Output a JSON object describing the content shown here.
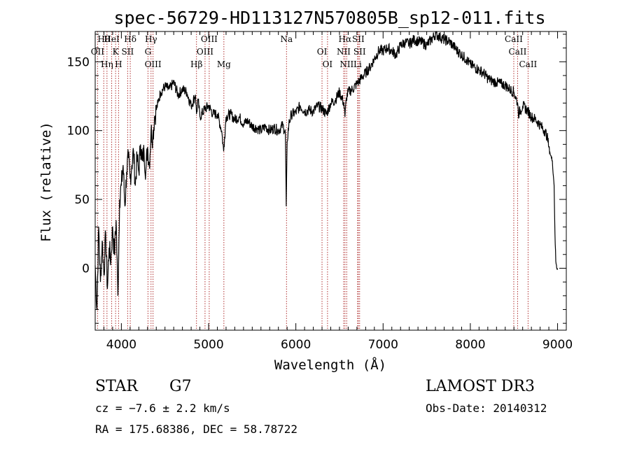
{
  "title": "spec-56729-HD113127N570805B_sp12-011.fits",
  "info": {
    "object_class": "STAR",
    "subclass": "G7",
    "survey": "LAMOST DR3",
    "cz": "cz = −7.6 ± 2.2 km/s",
    "obs_date": "Obs-Date: 20140312",
    "coords": "RA = 175.68386, DEC =  58.78722"
  },
  "chart_data": {
    "type": "line",
    "title": "spec-56729-HD113127N570805B_sp12-011.fits",
    "xlabel": "Wavelength (Å)",
    "ylabel": "Flux (relative)",
    "xlim": [
      3700,
      9100
    ],
    "ylim": [
      -45,
      172
    ],
    "x_ticks": [
      4000,
      5000,
      6000,
      7000,
      8000,
      9000
    ],
    "y_ticks": [
      0,
      50,
      100,
      150
    ],
    "grid": false,
    "legend": "none",
    "line_color": "#000000",
    "marker_line_color": "#b03030",
    "series": [
      {
        "x": [
          3700,
          3720,
          3740,
          3760,
          3780,
          3800,
          3820,
          3840,
          3860,
          3880,
          3900,
          3920,
          3940,
          3960,
          3980,
          4000,
          4020,
          4040,
          4060,
          4080,
          4100,
          4120,
          4140,
          4160,
          4180,
          4200,
          4220,
          4240,
          4260,
          4280,
          4300,
          4320,
          4340,
          4360,
          4380,
          4400,
          4420,
          4450,
          4500,
          4550,
          4600,
          4650,
          4700,
          4750,
          4800,
          4850,
          4861,
          4880,
          4900,
          4950,
          5000,
          5050,
          5100,
          5150,
          5172,
          5183,
          5200,
          5250,
          5300,
          5350,
          5400,
          5450,
          5500,
          5550,
          5600,
          5650,
          5700,
          5750,
          5800,
          5850,
          5880,
          5890,
          5900,
          5920,
          5950,
          6000,
          6050,
          6100,
          6150,
          6200,
          6250,
          6300,
          6350,
          6400,
          6450,
          6500,
          6550,
          6563,
          6580,
          6600,
          6650,
          6700,
          6750,
          6800,
          6850,
          6900,
          6950,
          7000,
          7050,
          7100,
          7150,
          7200,
          7250,
          7300,
          7350,
          7400,
          7450,
          7500,
          7550,
          7600,
          7650,
          7700,
          7750,
          7800,
          7850,
          7900,
          7950,
          8000,
          8050,
          8100,
          8150,
          8200,
          8250,
          8300,
          8350,
          8400,
          8450,
          8500,
          8542,
          8550,
          8600,
          8650,
          8700,
          8750,
          8800,
          8850,
          8880,
          8900,
          8920,
          8940,
          8960,
          8970,
          8980,
          8990,
          9000
        ],
        "y": [
          2,
          -30,
          30,
          -10,
          20,
          -5,
          25,
          -15,
          15,
          5,
          30,
          10,
          35,
          -20,
          50,
          60,
          75,
          45,
          70,
          80,
          65,
          75,
          85,
          60,
          80,
          70,
          90,
          78,
          85,
          70,
          88,
          75,
          100,
          95,
          110,
          115,
          120,
          128,
          132,
          130,
          135,
          126,
          130,
          128,
          118,
          126,
          112,
          122,
          110,
          115,
          118,
          112,
          112,
          100,
          85,
          95,
          110,
          112,
          108,
          110,
          105,
          107,
          103,
          102,
          100,
          103,
          100,
          102,
          100,
          104,
          98,
          45,
          92,
          105,
          112,
          113,
          118,
          114,
          115,
          114,
          118,
          116,
          112,
          120,
          122,
          128,
          120,
          110,
          124,
          128,
          130,
          134,
          138,
          142,
          146,
          152,
          158,
          158,
          160,
          158,
          155,
          162,
          164,
          163,
          166,
          165,
          164,
          162,
          166,
          170,
          168,
          166,
          165,
          162,
          158,
          155,
          152,
          148,
          146,
          144,
          142,
          138,
          136,
          135,
          134,
          133,
          130,
          128,
          120,
          112,
          118,
          115,
          110,
          108,
          104,
          100,
          96,
          88,
          82,
          78,
          60,
          25,
          5,
          0,
          0
        ]
      }
    ],
    "annotations": [
      {
        "label": "Hθ",
        "x": 3798
      },
      {
        "label": "OII",
        "x": 3727
      },
      {
        "label": "Hη",
        "x": 3835
      },
      {
        "label": "HeI",
        "x": 3889
      },
      {
        "label": "K",
        "x": 3934
      },
      {
        "label": "H",
        "x": 3968
      },
      {
        "label": "Hδ",
        "x": 4102
      },
      {
        "label": "SII",
        "x": 4072
      },
      {
        "label": "OIII",
        "x": 4363
      },
      {
        "label": "Hγ",
        "x": 4340
      },
      {
        "label": "G",
        "x": 4305
      },
      {
        "label": "Hβ",
        "x": 4861
      },
      {
        "label": "OIII",
        "x": 5007
      },
      {
        "label": "OIII",
        "x": 4959
      },
      {
        "label": "Mg",
        "x": 5175
      },
      {
        "label": "Na",
        "x": 5893
      },
      {
        "label": "OI",
        "x": 6300
      },
      {
        "label": "OI",
        "x": 6363
      },
      {
        "label": "Hα",
        "x": 6563
      },
      {
        "label": "NII",
        "x": 6548
      },
      {
        "label": "NII",
        "x": 6583
      },
      {
        "label": "SII",
        "x": 6716
      },
      {
        "label": "SII",
        "x": 6731
      },
      {
        "label": "Li",
        "x": 6708
      },
      {
        "label": "CaII",
        "x": 8498
      },
      {
        "label": "CaII",
        "x": 8542
      },
      {
        "label": "CaII",
        "x": 8662
      }
    ]
  }
}
